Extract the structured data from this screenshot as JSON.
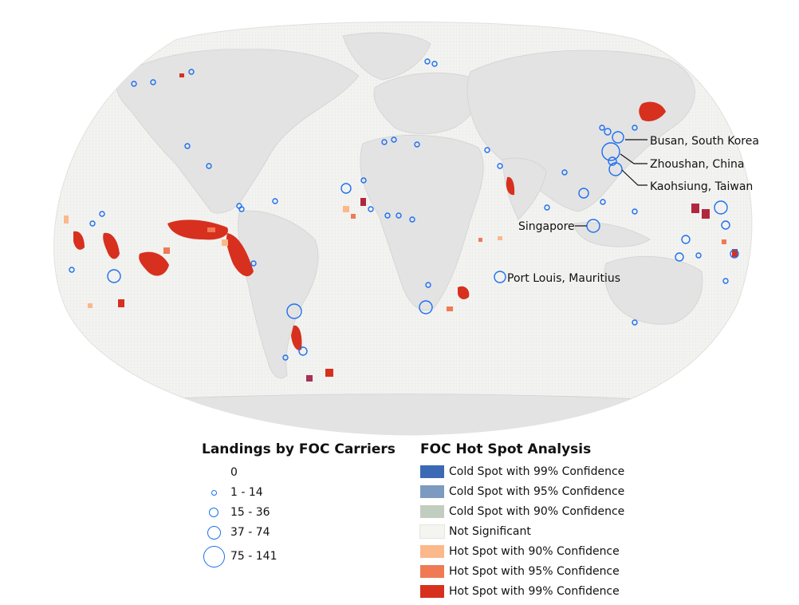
{
  "colors": {
    "ocean_bg": "#ffffff",
    "land": "#e3e3e3",
    "land_stroke": "#d2d2d2",
    "grid_fill": "#f1f1ef",
    "circle": "#1e6ff0",
    "hot99": "#d7301f",
    "hot95": "#ef7a54",
    "hot90": "#fbb88a",
    "cold99": "#3b69b4",
    "cold95": "#7d9bc0",
    "cold90": "#c1cdbf",
    "notsig": "#f4f4f1"
  },
  "labels": {
    "busan": "Busan, South Korea",
    "zhoushan": "Zhoushan, China",
    "kaohsiung": "Kaohsiung, Taiwan",
    "singapore": "Singapore",
    "port_louis": "Port Louis, Mauritius"
  },
  "size_legend": {
    "title": "Landings by FOC Carriers",
    "classes": [
      {
        "label": "0"
      },
      {
        "label": "1 - 14"
      },
      {
        "label": "15 - 36"
      },
      {
        "label": "37 - 74"
      },
      {
        "label": "75 - 141"
      }
    ]
  },
  "hotspot_legend": {
    "title": "FOC Hot Spot Analysis",
    "classes": [
      {
        "label": "Cold Spot with 99% Confidence",
        "color": "#3b69b4"
      },
      {
        "label": "Cold Spot with 95% Confidence",
        "color": "#7d9bc0"
      },
      {
        "label": "Cold Spot with 90% Confidence",
        "color": "#c1cdbf"
      },
      {
        "label": "Not Significant",
        "color": "#f4f4f1"
      },
      {
        "label": "Hot Spot with 90% Confidence",
        "color": "#fbb88a"
      },
      {
        "label": "Hot Spot with 95% Confidence",
        "color": "#ef7a54"
      },
      {
        "label": "Hot Spot with 99% Confidence",
        "color": "#d7301f"
      }
    ]
  }
}
